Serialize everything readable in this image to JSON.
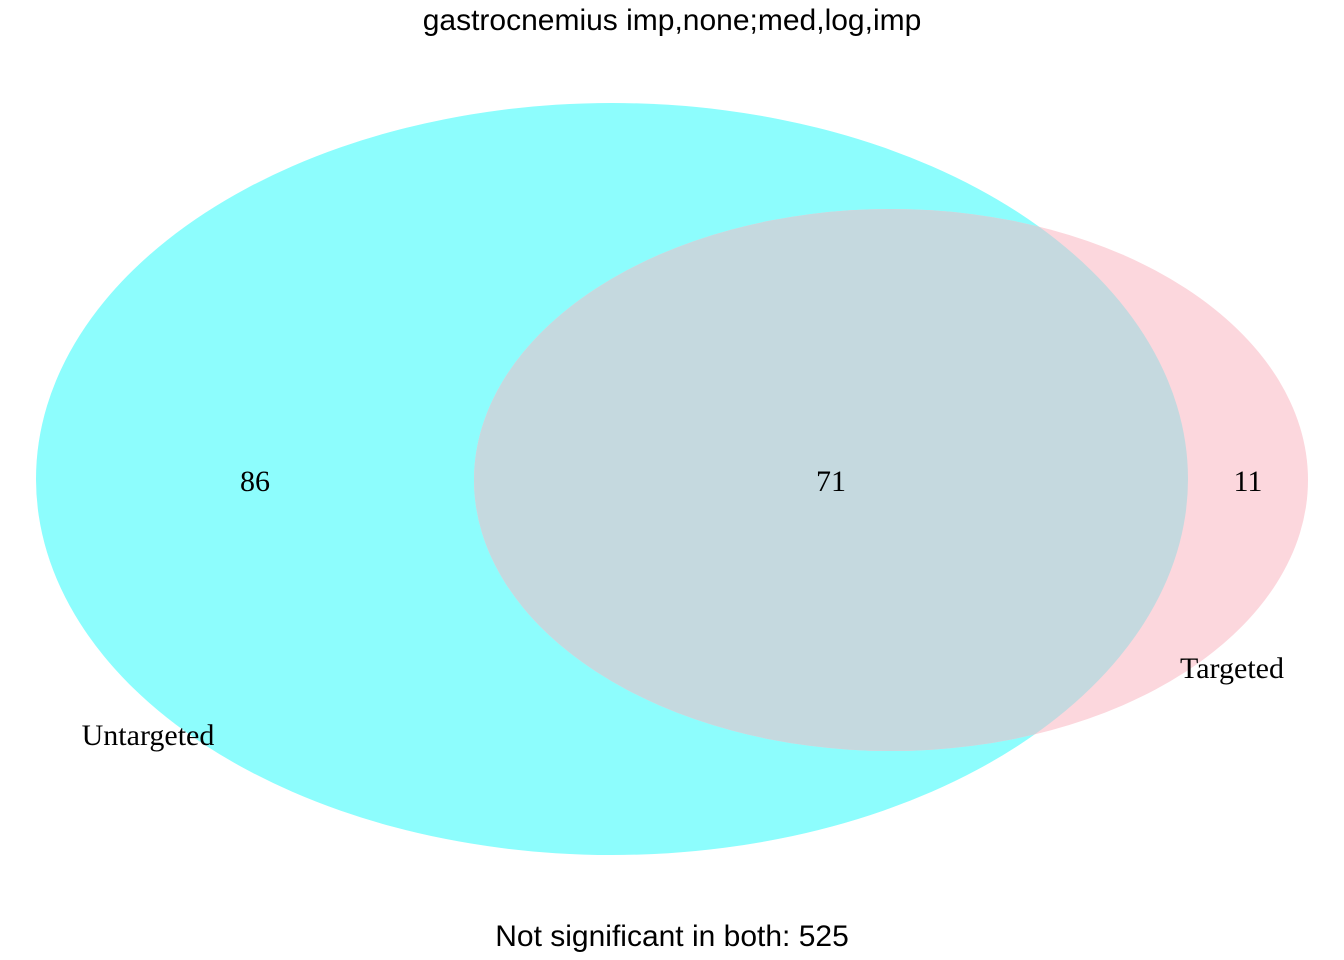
{
  "title": "gastrocnemius imp,none;med,log,imp",
  "sets": [
    {
      "name": "Untargeted",
      "color": "#8dfdfd"
    },
    {
      "name": "Targeted",
      "color": "#fcd7dd"
    }
  ],
  "overlap_color": "#c5d9df",
  "regions": {
    "untargeted_only": "86",
    "both": "71",
    "targeted_only": "11"
  },
  "footer": "Not significant in both: 525"
}
